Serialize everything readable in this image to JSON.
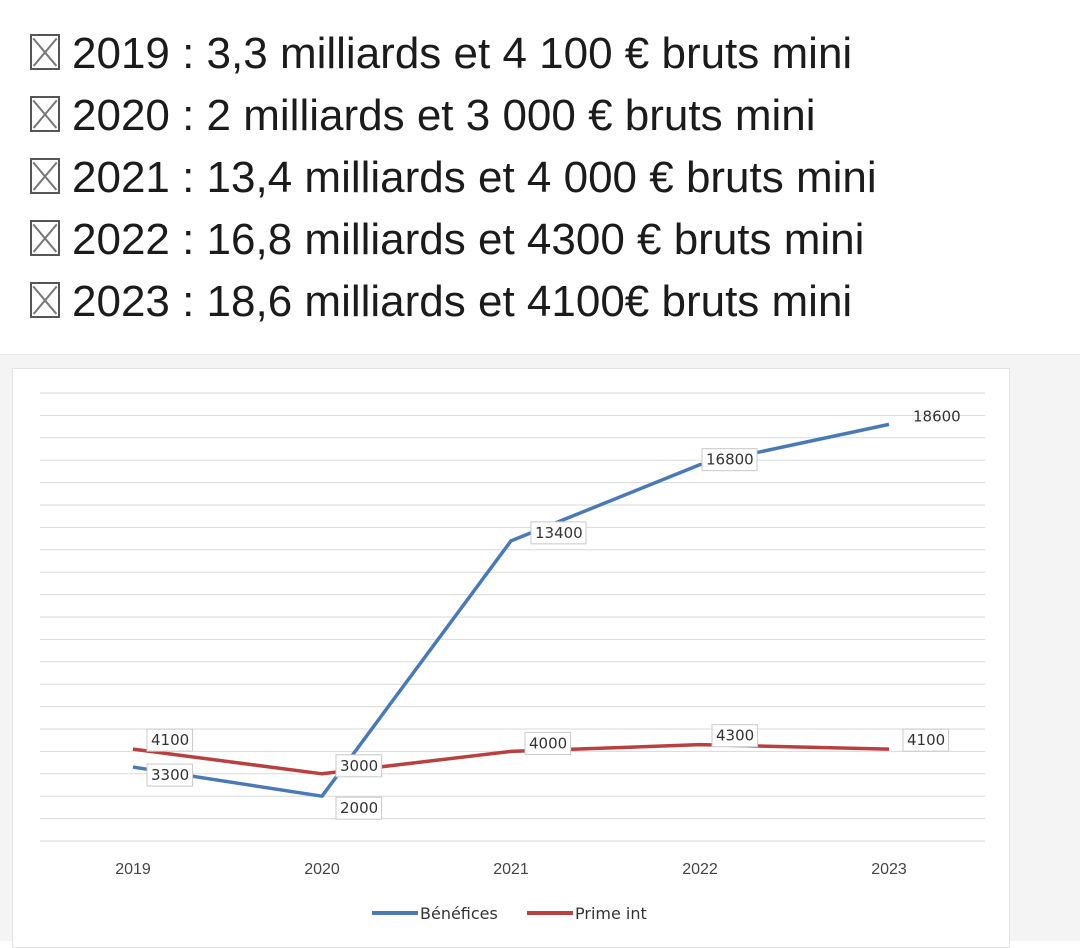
{
  "header": {
    "lines": [
      "2019 : 3,3 milliards et 4 100 € bruts mini",
      "2020 : 2 milliards et 3 000 € bruts mini",
      "2021 : 13,4 milliards et 4 000 € bruts mini",
      "2022 : 16,8 milliards et 4300 € bruts mini",
      "2023 : 18,6 milliards et 4100€ bruts mini"
    ],
    "bullet_icon": "missing-glyph-box-icon"
  },
  "chart_data": {
    "type": "line",
    "title": "",
    "xlabel": "",
    "ylabel": "",
    "categories": [
      "2019",
      "2020",
      "2021",
      "2022",
      "2023"
    ],
    "series": [
      {
        "name": "Bénéfices",
        "values": [
          3300,
          2000,
          13400,
          16800,
          18600
        ],
        "color": "#4a7ab5",
        "data_labels": [
          "3300",
          "2000",
          "13400",
          "16800",
          "18600"
        ]
      },
      {
        "name": "Prime int",
        "values": [
          4100,
          3000,
          4000,
          4300,
          4100
        ],
        "color": "#b84040",
        "data_labels": [
          "4100",
          "3000",
          "4000",
          "4300",
          "4100"
        ]
      }
    ],
    "ylim": [
      0,
      20000
    ],
    "y_gridline_step": 1000,
    "y_tick_labels_shown": false,
    "grid": true,
    "legend_position": "bottom"
  }
}
